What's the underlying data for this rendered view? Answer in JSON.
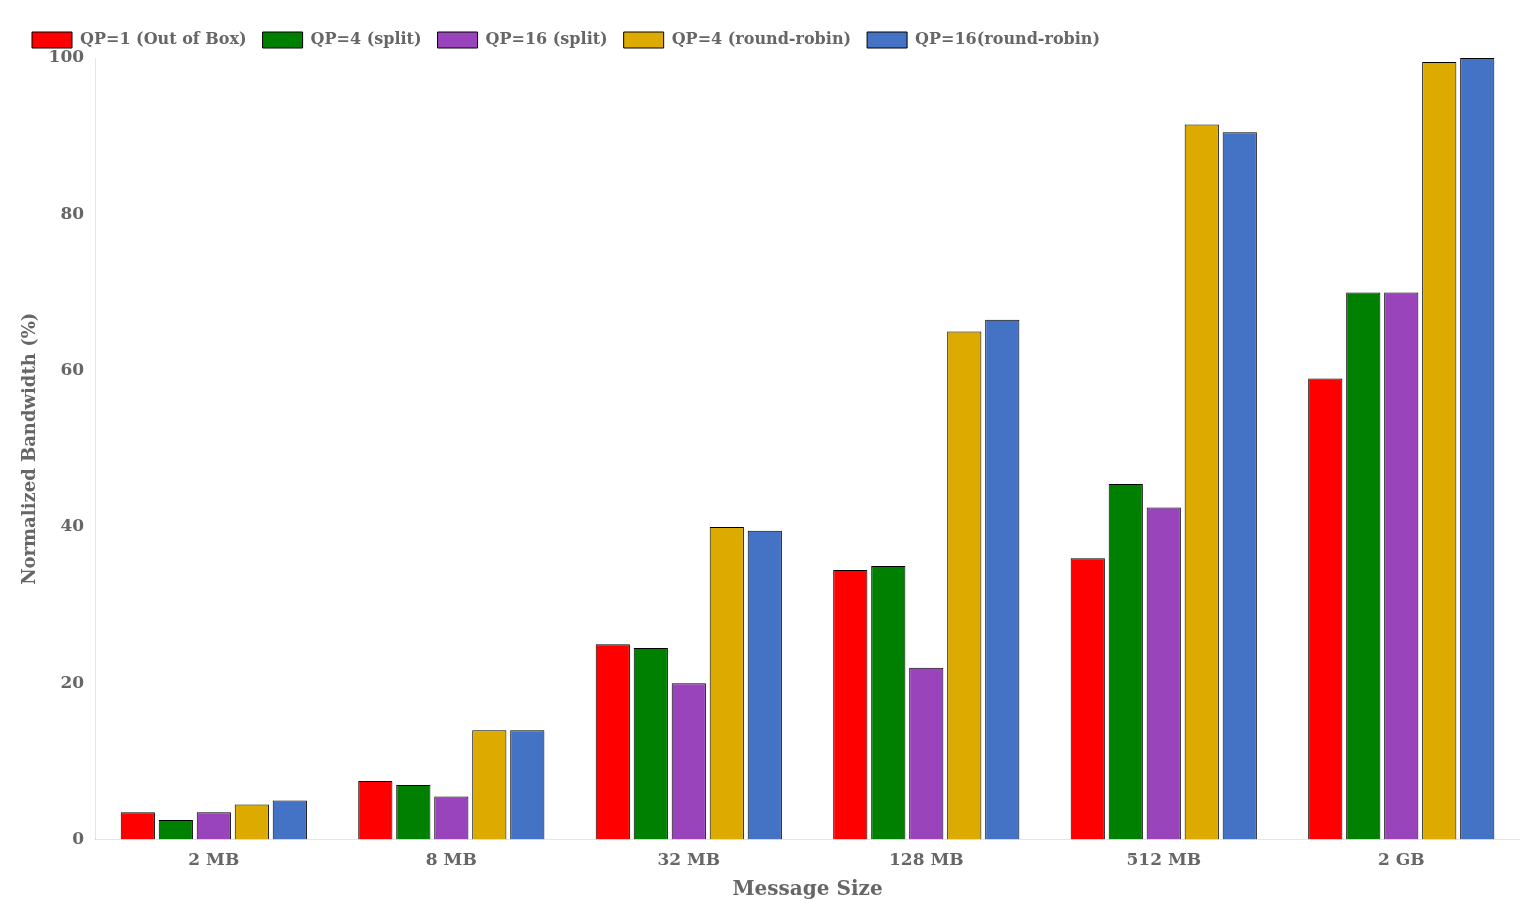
{
  "chart_data": {
    "type": "bar",
    "xlabel": "Message Size",
    "ylabel": "Normalized Bandwidth (%)",
    "categories": [
      "2 MB",
      "8 MB",
      "32 MB",
      "128 MB",
      "512 MB",
      "2 GB"
    ],
    "series": [
      {
        "name": "QP=1 (Out of Box)",
        "color": "red",
        "values": [
          3.5,
          7.5,
          25.0,
          34.5,
          36.0,
          59.0
        ]
      },
      {
        "name": "QP=4 (split)",
        "color": "green",
        "values": [
          2.5,
          7.0,
          24.5,
          35.0,
          45.5,
          70.0
        ]
      },
      {
        "name": "QP=16 (split)",
        "color": "#9944bb",
        "values": [
          3.5,
          5.5,
          20.0,
          22.0,
          42.5,
          70.0
        ]
      },
      {
        "name": "QP=4 (round-robin)",
        "color": "#ddaa00",
        "values": [
          4.5,
          14.0,
          40.0,
          65.0,
          91.5,
          99.5
        ]
      },
      {
        "name": "QP=16(round-robin)",
        "color": "#4472C4",
        "values": [
          5.0,
          14.0,
          39.5,
          66.5,
          90.5,
          100.0
        ]
      }
    ],
    "ylim": [
      0,
      100
    ],
    "yticks": [
      0,
      20,
      40,
      60,
      80,
      100
    ],
    "grid": false,
    "legend": "upper left"
  }
}
